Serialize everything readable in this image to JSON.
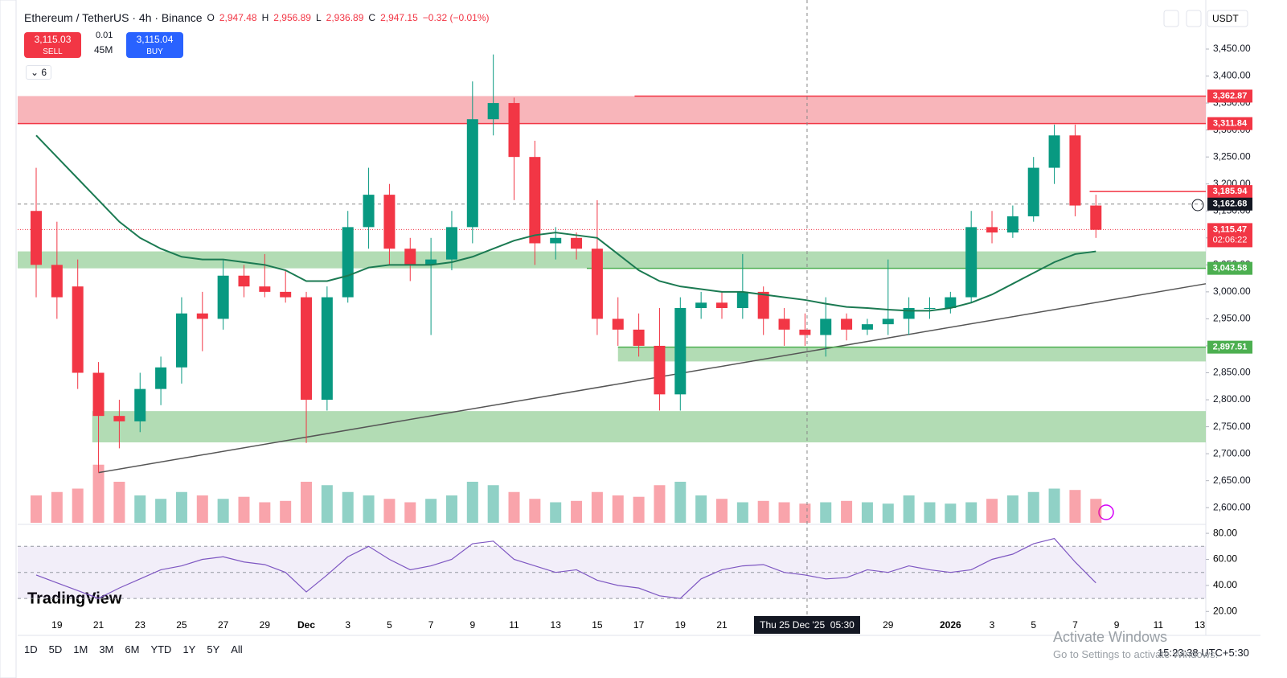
{
  "header": {
    "symbol": "Ethereum / TetherUS · 4h · Binance",
    "o_label": "O",
    "open": "2,947.48",
    "h_label": "H",
    "high": "2,956.89",
    "l_label": "L",
    "low": "2,936.89",
    "c_label": "C",
    "close": "2,947.15",
    "change": "−0.32 (−0.01%)",
    "sell_price": "3,115.03",
    "sell": "SELL",
    "spread": "0.01",
    "volume": "45M",
    "buy_price": "3,115.04",
    "buy": "BUY",
    "indicators": "6",
    "currency": "USDT"
  },
  "chart_data": {
    "type": "candlestick",
    "xlim": [
      -0.89,
      56.29
    ],
    "ylim": [
      2572,
      3529
    ],
    "xticks": [
      {
        "value": 1,
        "label": "19"
      },
      {
        "value": 3,
        "label": "21"
      },
      {
        "value": 5,
        "label": "23"
      },
      {
        "value": 7,
        "label": "25"
      },
      {
        "value": 9,
        "label": "27"
      },
      {
        "value": 11,
        "label": "29"
      },
      {
        "value": 13,
        "label": "Dec"
      },
      {
        "value": 15,
        "label": "3"
      },
      {
        "value": 17,
        "label": "5"
      },
      {
        "value": 19,
        "label": "7"
      },
      {
        "value": 21,
        "label": "9"
      },
      {
        "value": 23,
        "label": "11"
      },
      {
        "value": 25,
        "label": "13"
      },
      {
        "value": 27,
        "label": "15"
      },
      {
        "value": 29,
        "label": "17"
      },
      {
        "value": 31,
        "label": "19"
      },
      {
        "value": 33,
        "label": "21"
      },
      {
        "value": 41,
        "label": "29"
      },
      {
        "value": 44,
        "label": "2026"
      },
      {
        "value": 46,
        "label": "3"
      },
      {
        "value": 48,
        "label": "5"
      },
      {
        "value": 50,
        "label": "7"
      },
      {
        "value": 52,
        "label": "9"
      },
      {
        "value": 54,
        "label": "11"
      },
      {
        "value": 56,
        "label": "13"
      }
    ],
    "yticks": [
      {
        "value": 2600,
        "label": "2,600.00"
      },
      {
        "value": 2650,
        "label": "2,650.00"
      },
      {
        "value": 2700,
        "label": "2,700.00"
      },
      {
        "value": 2750,
        "label": "2,750.00"
      },
      {
        "value": 2800,
        "label": "2,800.00"
      },
      {
        "value": 2850,
        "label": "2,850.00"
      },
      {
        "value": 2900,
        "label": "2,900.00"
      },
      {
        "value": 2950,
        "label": "2,950.00"
      },
      {
        "value": 3000,
        "label": "3,000.00"
      },
      {
        "value": 3050,
        "label": "3,050.00"
      },
      {
        "value": 3100,
        "label": "3,100.00"
      },
      {
        "value": 3150,
        "label": "3,150.00"
      },
      {
        "value": 3200,
        "label": "3,200.00"
      },
      {
        "value": 3250,
        "label": "3,250.00"
      },
      {
        "value": 3300,
        "label": "3,300.00"
      },
      {
        "value": 3350,
        "label": "3,350.00"
      },
      {
        "value": 3400,
        "label": "3,400.00"
      },
      {
        "value": 3450,
        "label": "3,450.00"
      }
    ],
    "up_color": "#089981",
    "down_color": "#f23645",
    "candles": [
      {
        "open": 3150,
        "high": 3230,
        "low": 2990,
        "close": 3050
      },
      {
        "open": 3050,
        "high": 3130,
        "low": 2950,
        "close": 2990
      },
      {
        "open": 3010,
        "high": 3060,
        "low": 2820,
        "close": 2850
      },
      {
        "open": 2850,
        "high": 2870,
        "low": 2665,
        "close": 2770
      },
      {
        "open": 2770,
        "high": 2800,
        "low": 2710,
        "close": 2760
      },
      {
        "open": 2760,
        "high": 2850,
        "low": 2740,
        "close": 2820
      },
      {
        "open": 2820,
        "high": 2880,
        "low": 2790,
        "close": 2860
      },
      {
        "open": 2860,
        "high": 2990,
        "low": 2830,
        "close": 2960
      },
      {
        "open": 2960,
        "high": 3000,
        "low": 2890,
        "close": 2950
      },
      {
        "open": 2950,
        "high": 3060,
        "low": 2930,
        "close": 3030
      },
      {
        "open": 3030,
        "high": 3050,
        "low": 2990,
        "close": 3010
      },
      {
        "open": 3010,
        "high": 3070,
        "low": 2990,
        "close": 3000
      },
      {
        "open": 3000,
        "high": 3040,
        "low": 2980,
        "close": 2990
      },
      {
        "open": 2990,
        "high": 3000,
        "low": 2720,
        "close": 2800
      },
      {
        "open": 2800,
        "high": 3010,
        "low": 2780,
        "close": 2990
      },
      {
        "open": 2990,
        "high": 3150,
        "low": 2980,
        "close": 3120
      },
      {
        "open": 3120,
        "high": 3230,
        "low": 3080,
        "close": 3180
      },
      {
        "open": 3180,
        "high": 3200,
        "low": 3050,
        "close": 3080
      },
      {
        "open": 3080,
        "high": 3100,
        "low": 3020,
        "close": 3050
      },
      {
        "open": 3050,
        "high": 3100,
        "low": 2920,
        "close": 3060
      },
      {
        "open": 3060,
        "high": 3150,
        "low": 3040,
        "close": 3120
      },
      {
        "open": 3120,
        "high": 3390,
        "low": 3090,
        "close": 3320
      },
      {
        "open": 3320,
        "high": 3440,
        "low": 3290,
        "close": 3350
      },
      {
        "open": 3350,
        "high": 3360,
        "low": 3170,
        "close": 3250
      },
      {
        "open": 3250,
        "high": 3280,
        "low": 3050,
        "close": 3090
      },
      {
        "open": 3090,
        "high": 3120,
        "low": 3060,
        "close": 3100
      },
      {
        "open": 3100,
        "high": 3110,
        "low": 3060,
        "close": 3080
      },
      {
        "open": 3080,
        "high": 3170,
        "low": 2920,
        "close": 2950
      },
      {
        "open": 2950,
        "high": 2990,
        "low": 2900,
        "close": 2930
      },
      {
        "open": 2930,
        "high": 2960,
        "low": 2880,
        "close": 2900
      },
      {
        "open": 2900,
        "high": 2970,
        "low": 2780,
        "close": 2810
      },
      {
        "open": 2810,
        "high": 2990,
        "low": 2780,
        "close": 2970
      },
      {
        "open": 2970,
        "high": 3000,
        "low": 2950,
        "close": 2980
      },
      {
        "open": 2980,
        "high": 3000,
        "low": 2950,
        "close": 2970
      },
      {
        "open": 2970,
        "high": 3070,
        "low": 2950,
        "close": 3000
      },
      {
        "open": 3000,
        "high": 3010,
        "low": 2920,
        "close": 2950
      },
      {
        "open": 2950,
        "high": 2970,
        "low": 2900,
        "close": 2930
      },
      {
        "open": 2930,
        "high": 2960,
        "low": 2900,
        "close": 2920
      },
      {
        "open": 2920,
        "high": 2990,
        "low": 2880,
        "close": 2950
      },
      {
        "open": 2950,
        "high": 2960,
        "low": 2910,
        "close": 2930
      },
      {
        "open": 2930,
        "high": 2950,
        "low": 2920,
        "close": 2940
      },
      {
        "open": 2940,
        "high": 3060,
        "low": 2920,
        "close": 2950
      },
      {
        "open": 2950,
        "high": 2990,
        "low": 2920,
        "close": 2970
      },
      {
        "open": 2970,
        "high": 2990,
        "low": 2950,
        "close": 2970
      },
      {
        "open": 2970,
        "high": 3000,
        "low": 2960,
        "close": 2990
      },
      {
        "open": 2990,
        "high": 3150,
        "low": 2980,
        "close": 3120
      },
      {
        "open": 3120,
        "high": 3150,
        "low": 3090,
        "close": 3110
      },
      {
        "open": 3110,
        "high": 3160,
        "low": 3100,
        "close": 3140
      },
      {
        "open": 3140,
        "high": 3250,
        "low": 3130,
        "close": 3230
      },
      {
        "open": 3230,
        "high": 3310,
        "low": 3200,
        "close": 3290
      },
      {
        "open": 3290,
        "high": 3310,
        "low": 3140,
        "close": 3160
      },
      {
        "open": 3160,
        "high": 3180,
        "low": 3100,
        "close": 3115
      }
    ],
    "ma": {
      "color": "#1b7a52",
      "values": [
        3290,
        3250,
        3210,
        3170,
        3130,
        3100,
        3080,
        3065,
        3060,
        3060,
        3055,
        3050,
        3040,
        3020,
        3020,
        3030,
        3045,
        3050,
        3050,
        3050,
        3055,
        3065,
        3080,
        3095,
        3105,
        3110,
        3105,
        3100,
        3070,
        3040,
        3020,
        3010,
        3005,
        3000,
        3000,
        2995,
        2990,
        2985,
        2978,
        2972,
        2970,
        2967,
        2965,
        2965,
        2970,
        2980,
        2995,
        3015,
        3035,
        3055,
        3070,
        3075
      ]
    },
    "volume": {
      "ylim": [
        0,
        100
      ],
      "values": [
        40,
        45,
        50,
        85,
        60,
        40,
        35,
        45,
        40,
        35,
        38,
        30,
        32,
        60,
        55,
        45,
        40,
        35,
        30,
        35,
        40,
        60,
        55,
        45,
        35,
        30,
        32,
        45,
        40,
        38,
        55,
        60,
        40,
        35,
        30,
        32,
        30,
        28,
        30,
        32,
        30,
        28,
        40,
        30,
        28,
        30,
        35,
        40,
        45,
        50,
        48,
        35
      ]
    },
    "zones": [
      {
        "top": 3362.87,
        "bottom": 3311.84,
        "x0": -0.89,
        "color": "#f7a8ae"
      },
      {
        "top": 3075,
        "bottom": 3043.58,
        "x0": -0.89,
        "color": "#a5d6a7"
      },
      {
        "top": 2897.51,
        "bottom": 2871,
        "x0": 28,
        "color": "#a5d6a7"
      },
      {
        "top": 2779,
        "bottom": 2721,
        "x0": 2.7,
        "color": "#a5d6a7"
      }
    ],
    "levels": [
      {
        "value": 3362.87,
        "label": "3,362.87",
        "x0": 28.8,
        "color": "#f23645"
      },
      {
        "value": 3311.84,
        "label": "3,311.84",
        "x0": -0.89,
        "color": "#f23645"
      },
      {
        "value": 3185.94,
        "label": "3,185.94",
        "x0": 50.7,
        "color": "#f23645"
      },
      {
        "value": 3043.58,
        "label": "3,043.58",
        "x0": 26.5,
        "color": "#4caf50"
      },
      {
        "value": 2897.51,
        "label": "2,897.51",
        "x0": 28,
        "color": "#4caf50"
      }
    ],
    "last_price": {
      "value": 3115.47,
      "label": "3,115.47",
      "countdown": "02:06:22",
      "color": "#f23645"
    },
    "trendline": [
      {
        "x": 3,
        "y": 2665
      },
      {
        "x": 56.29,
        "y": 3015
      }
    ],
    "crosshair": {
      "x": 37.1,
      "label": "Thu 25 Dec '25  05:30",
      "price": {
        "value": 3162.68,
        "label": "3,162.68"
      }
    },
    "rsi": {
      "color": "#7e57c2",
      "ylim": [
        14,
        85
      ],
      "band": [
        30,
        70
      ],
      "mid": 50,
      "yticks": [
        {
          "value": 20,
          "label": "20.00"
        },
        {
          "value": 40,
          "label": "40.00"
        },
        {
          "value": 60,
          "label": "60.00"
        },
        {
          "value": 80,
          "label": "80.00"
        }
      ],
      "values": [
        48,
        42,
        36,
        30,
        38,
        45,
        52,
        55,
        60,
        62,
        58,
        56,
        50,
        35,
        48,
        62,
        70,
        60,
        52,
        55,
        60,
        72,
        74,
        60,
        55,
        50,
        52,
        44,
        40,
        38,
        32,
        30,
        45,
        52,
        55,
        56,
        50,
        48,
        45,
        46,
        52,
        50,
        55,
        52,
        50,
        52,
        60,
        64,
        72,
        76,
        58,
        42
      ]
    }
  },
  "footer": {
    "ranges": [
      "1D",
      "5D",
      "1M",
      "3M",
      "6M",
      "YTD",
      "1Y",
      "5Y",
      "All"
    ],
    "clock": "15:23:38 UTC+5:30",
    "brand": "TradingView",
    "activate_title": "Activate Windows",
    "activate_text": "Go to Settings to activate Windows."
  }
}
